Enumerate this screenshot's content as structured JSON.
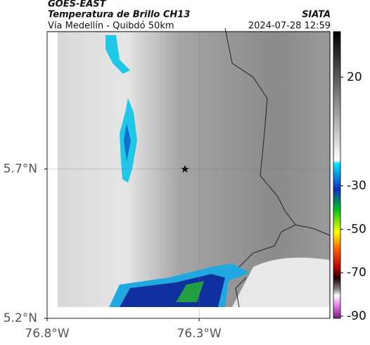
{
  "header": {
    "source": "GOES-EAST",
    "title": "Temperatura de Brillo CH13",
    "org": "SIATA",
    "subtitle": "Vía Medellín - Quibdó 50km",
    "datetime": "2024-07-28 12:59"
  },
  "map": {
    "xlim": [
      -76.8,
      -75.87
    ],
    "ylim": [
      5.2,
      6.16
    ],
    "xticks": [
      {
        "value": -76.8,
        "label": "76.8°W"
      },
      {
        "value": -76.3,
        "label": "76.3°W"
      }
    ],
    "yticks": [
      {
        "value": 5.2,
        "label": "5.2°N"
      },
      {
        "value": 5.7,
        "label": "5.7°N"
      }
    ]
  },
  "colorbar": {
    "lim": [
      -91,
      41
    ],
    "ticks": [
      20,
      -30,
      -50,
      -70,
      -90
    ]
  }
}
